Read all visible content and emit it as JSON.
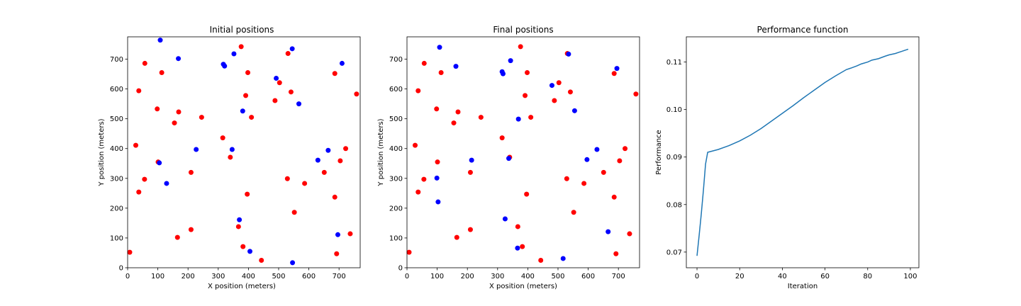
{
  "colors": {
    "red": "#ff0000",
    "blue": "#0000ff",
    "line": "#1f77b4"
  },
  "chart_data": [
    {
      "type": "scatter",
      "title": "Initial positions",
      "xlabel": "X position (meters)",
      "ylabel": "Y position (meters)",
      "xlim": [
        0,
        770
      ],
      "ylim": [
        0,
        775
      ],
      "xticks": [
        0,
        100,
        200,
        300,
        400,
        500,
        600,
        700
      ],
      "yticks": [
        0,
        100,
        200,
        300,
        400,
        500,
        600,
        700
      ],
      "grid": false,
      "series": [
        {
          "color": "#ff0000",
          "points": [
            [
              57,
              686
            ],
            [
              113,
              655
            ],
            [
              37,
              594
            ],
            [
              98,
              533
            ],
            [
              169,
              523
            ],
            [
              155,
              486
            ],
            [
              245,
              505
            ],
            [
              27,
              411
            ],
            [
              210,
              320
            ],
            [
              56,
              297
            ],
            [
              37,
              254
            ],
            [
              165,
              102
            ],
            [
              210,
              128
            ],
            [
              7,
              52
            ],
            [
              376,
              742
            ],
            [
              398,
              655
            ],
            [
              391,
              578
            ],
            [
              315,
              436
            ],
            [
              410,
              505
            ],
            [
              488,
              561
            ],
            [
              503,
              621
            ],
            [
              340,
              371
            ],
            [
              396,
              247
            ],
            [
              367,
              138
            ],
            [
              382,
              71
            ],
            [
              443,
              25
            ],
            [
              531,
              719
            ],
            [
              541,
              590
            ],
            [
              529,
              299
            ],
            [
              552,
              186
            ],
            [
              586,
              283
            ],
            [
              686,
              652
            ],
            [
              758,
              583
            ],
            [
              651,
              320
            ],
            [
              722,
              400
            ],
            [
              704,
              359
            ],
            [
              686,
              237
            ],
            [
              737,
              114
            ],
            [
              692,
              47
            ],
            [
              101,
              355
            ]
          ]
        },
        {
          "color": "#0000ff",
          "points": [
            [
              108,
              764
            ],
            [
              168,
              702
            ],
            [
              105,
              352
            ],
            [
              129,
              283
            ],
            [
              227,
              397
            ],
            [
              317,
              683
            ],
            [
              321,
              677
            ],
            [
              352,
              718
            ],
            [
              381,
              526
            ],
            [
              346,
              397
            ],
            [
              370,
              161
            ],
            [
              405,
              55
            ],
            [
              545,
              735
            ],
            [
              492,
              636
            ],
            [
              567,
              550
            ],
            [
              546,
              17
            ],
            [
              630,
              361
            ],
            [
              664,
              394
            ],
            [
              710,
              686
            ],
            [
              696,
              111
            ]
          ]
        }
      ]
    },
    {
      "type": "scatter",
      "title": "Final positions",
      "xlabel": "X position (meters)",
      "ylabel": "Y position (meters)",
      "xlim": [
        0,
        770
      ],
      "ylim": [
        0,
        775
      ],
      "xticks": [
        0,
        100,
        200,
        300,
        400,
        500,
        600,
        700
      ],
      "yticks": [
        0,
        100,
        200,
        300,
        400,
        500,
        600,
        700
      ],
      "grid": false,
      "series": [
        {
          "color": "#ff0000",
          "points": [
            [
              57,
              686
            ],
            [
              113,
              655
            ],
            [
              37,
              594
            ],
            [
              98,
              533
            ],
            [
              169,
              523
            ],
            [
              155,
              486
            ],
            [
              245,
              505
            ],
            [
              27,
              411
            ],
            [
              210,
              320
            ],
            [
              56,
              297
            ],
            [
              37,
              254
            ],
            [
              165,
              102
            ],
            [
              210,
              128
            ],
            [
              7,
              52
            ],
            [
              376,
              742
            ],
            [
              398,
              655
            ],
            [
              391,
              578
            ],
            [
              315,
              436
            ],
            [
              410,
              505
            ],
            [
              488,
              561
            ],
            [
              503,
              621
            ],
            [
              340,
              371
            ],
            [
              396,
              247
            ],
            [
              367,
              138
            ],
            [
              382,
              71
            ],
            [
              443,
              25
            ],
            [
              531,
              719
            ],
            [
              541,
              590
            ],
            [
              529,
              299
            ],
            [
              552,
              186
            ],
            [
              586,
              283
            ],
            [
              686,
              652
            ],
            [
              758,
              583
            ],
            [
              651,
              320
            ],
            [
              722,
              400
            ],
            [
              704,
              359
            ],
            [
              686,
              237
            ],
            [
              737,
              114
            ],
            [
              692,
              47
            ],
            [
              101,
              355
            ]
          ]
        },
        {
          "color": "#0000ff",
          "points": [
            [
              108,
              740
            ],
            [
              162,
              676
            ],
            [
              99,
              301
            ],
            [
              103,
              221
            ],
            [
              214,
              361
            ],
            [
              315,
              658
            ],
            [
              318,
              651
            ],
            [
              343,
              695
            ],
            [
              369,
              499
            ],
            [
              337,
              367
            ],
            [
              325,
              164
            ],
            [
              366,
              66
            ],
            [
              535,
              717
            ],
            [
              480,
              612
            ],
            [
              555,
              527
            ],
            [
              517,
              31
            ],
            [
              596,
              363
            ],
            [
              629,
              397
            ],
            [
              695,
              669
            ],
            [
              666,
              121
            ]
          ]
        }
      ]
    },
    {
      "type": "line",
      "title": "Performance function",
      "xlabel": "Iteration",
      "ylabel": "Performance",
      "xlim": [
        -5,
        104
      ],
      "ylim": [
        0.0667,
        0.1153
      ],
      "xticks": [
        0,
        20,
        40,
        60,
        80,
        100
      ],
      "yticks": [
        0.07,
        0.08,
        0.09,
        0.1,
        0.11
      ],
      "ytick_labels": [
        "0.07",
        "0.08",
        "0.09",
        "0.10",
        "0.11"
      ],
      "grid": false,
      "series": [
        {
          "color": "#1f77b4",
          "x": [
            0,
            1,
            2,
            3,
            4,
            5,
            10,
            15,
            20,
            25,
            30,
            35,
            40,
            45,
            50,
            55,
            60,
            65,
            70,
            72,
            75,
            77,
            80,
            82,
            85,
            88,
            90,
            93,
            95,
            97,
            99
          ],
          "y": [
            0.0692,
            0.0735,
            0.078,
            0.083,
            0.0885,
            0.091,
            0.0916,
            0.0924,
            0.0934,
            0.0946,
            0.096,
            0.0976,
            0.0992,
            0.1008,
            0.1025,
            0.1041,
            0.1057,
            0.1071,
            0.1084,
            0.1087,
            0.1092,
            0.1096,
            0.11,
            0.1104,
            0.1107,
            0.1112,
            0.1115,
            0.1118,
            0.1121,
            0.1124,
            0.1127
          ]
        }
      ]
    }
  ]
}
